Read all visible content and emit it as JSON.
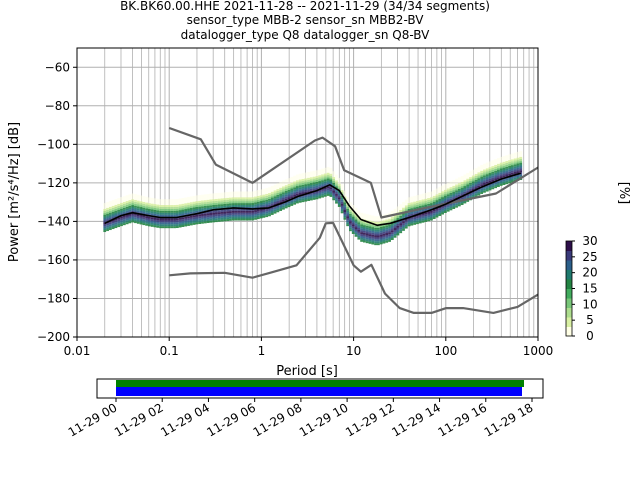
{
  "title": {
    "line1": "BK.BK60.00.HHE   2021-11-28 -- 2021-11-29  (34/34 segments)",
    "line2": "sensor_type MBB-2 sensor_sn MBB2-BV",
    "line3": "datalogger_type Q8 datalogger_sn Q8-BV"
  },
  "chart_data": {
    "type": "heatmap",
    "xlabel": "Period [s]",
    "ylabel": "Power [m²/s⁴/Hz] [dB]",
    "xscale": "log",
    "xlim": [
      0.01,
      1000
    ],
    "ylim": [
      -200,
      -50
    ],
    "xticks": [
      {
        "v": 0.01,
        "label": "0.01"
      },
      {
        "v": 0.1,
        "label": "0.1"
      },
      {
        "v": 1,
        "label": "1"
      },
      {
        "v": 10,
        "label": "10"
      },
      {
        "v": 100,
        "label": "100"
      },
      {
        "v": 1000,
        "label": "1000"
      }
    ],
    "yticks": [
      -60,
      -80,
      -100,
      -120,
      -140,
      -160,
      -180,
      -200
    ],
    "grid": true,
    "colorbar": {
      "label": "[%]",
      "ticks": [
        0,
        5,
        10,
        15,
        20,
        25,
        30
      ],
      "range": [
        0,
        30
      ],
      "colors": [
        "#ffffe5",
        "#d9f0a3",
        "#addd8e",
        "#78c679",
        "#41ab5d",
        "#238443",
        "#1f7a6e",
        "#2b5f8a",
        "#3a3a7a",
        "#2d0f4a"
      ]
    },
    "new_high_noise_model": [
      [
        0.1,
        -91.5
      ],
      [
        0.22,
        -97.4
      ],
      [
        0.32,
        -110.5
      ],
      [
        0.8,
        -120
      ],
      [
        3.8,
        -98
      ],
      [
        4.6,
        -96.5
      ],
      [
        6.3,
        -101
      ],
      [
        7.9,
        -113.5
      ],
      [
        15.4,
        -120
      ],
      [
        20,
        -138
      ],
      [
        60,
        -133
      ],
      [
        350,
        -125.5
      ],
      [
        1000,
        -112
      ]
    ],
    "new_low_noise_model": [
      [
        0.1,
        -168
      ],
      [
        0.17,
        -167
      ],
      [
        0.4,
        -166.7
      ],
      [
        0.8,
        -169.2
      ],
      [
        1.24,
        -166.7
      ],
      [
        2.4,
        -162.8
      ],
      [
        4.3,
        -148.5
      ],
      [
        5,
        -141
      ],
      [
        6,
        -140.8
      ],
      [
        10,
        -162.8
      ],
      [
        12,
        -166.1
      ],
      [
        15.6,
        -162.5
      ],
      [
        21.9,
        -177.5
      ],
      [
        31.6,
        -185
      ],
      [
        45,
        -187.5
      ],
      [
        70,
        -187.5
      ],
      [
        101,
        -185
      ],
      [
        154,
        -185
      ],
      [
        328,
        -187.5
      ],
      [
        600,
        -184.4
      ],
      [
        1000,
        -178
      ]
    ],
    "mean_curve": [
      [
        0.02,
        -141
      ],
      [
        0.03,
        -137
      ],
      [
        0.04,
        -135.5
      ],
      [
        0.06,
        -137
      ],
      [
        0.08,
        -138
      ],
      [
        0.12,
        -138
      ],
      [
        0.2,
        -136
      ],
      [
        0.3,
        -134
      ],
      [
        0.5,
        -133
      ],
      [
        0.8,
        -133.5
      ],
      [
        1.2,
        -133
      ],
      [
        1.8,
        -130
      ],
      [
        2.5,
        -127
      ],
      [
        4,
        -124
      ],
      [
        5.5,
        -121
      ],
      [
        7,
        -124
      ],
      [
        9,
        -132
      ],
      [
        12,
        -139
      ],
      [
        18,
        -142
      ],
      [
        25,
        -141
      ],
      [
        40,
        -138
      ],
      [
        70,
        -134
      ],
      [
        100,
        -131
      ],
      [
        150,
        -127
      ],
      [
        250,
        -122
      ],
      [
        400,
        -118
      ],
      [
        650,
        -115
      ]
    ],
    "mode_curve": [
      [
        0.02,
        -141
      ],
      [
        0.03,
        -138
      ],
      [
        0.04,
        -136
      ],
      [
        0.06,
        -138
      ],
      [
        0.08,
        -139
      ],
      [
        0.12,
        -139
      ],
      [
        0.2,
        -137
      ],
      [
        0.3,
        -136
      ],
      [
        0.5,
        -135
      ],
      [
        0.8,
        -135
      ],
      [
        1.2,
        -133
      ],
      [
        1.8,
        -129
      ],
      [
        2.5,
        -126
      ],
      [
        4,
        -124
      ],
      [
        5.5,
        -122
      ],
      [
        7,
        -128
      ],
      [
        9,
        -140
      ],
      [
        12,
        -146
      ],
      [
        18,
        -148
      ],
      [
        25,
        -146
      ],
      [
        40,
        -138
      ],
      [
        70,
        -135
      ],
      [
        100,
        -131
      ],
      [
        150,
        -127
      ],
      [
        250,
        -121
      ],
      [
        400,
        -117
      ],
      [
        650,
        -114
      ]
    ],
    "timeline": {
      "tick_labels": [
        "11-29 00",
        "11-29 02",
        "11-29 04",
        "11-29 06",
        "11-29 08",
        "11-29 10",
        "11-29 12",
        "11-29 14",
        "11-29 16",
        "11-29 18"
      ],
      "coverage_colors": [
        "#008000",
        "#0000ff"
      ]
    }
  }
}
